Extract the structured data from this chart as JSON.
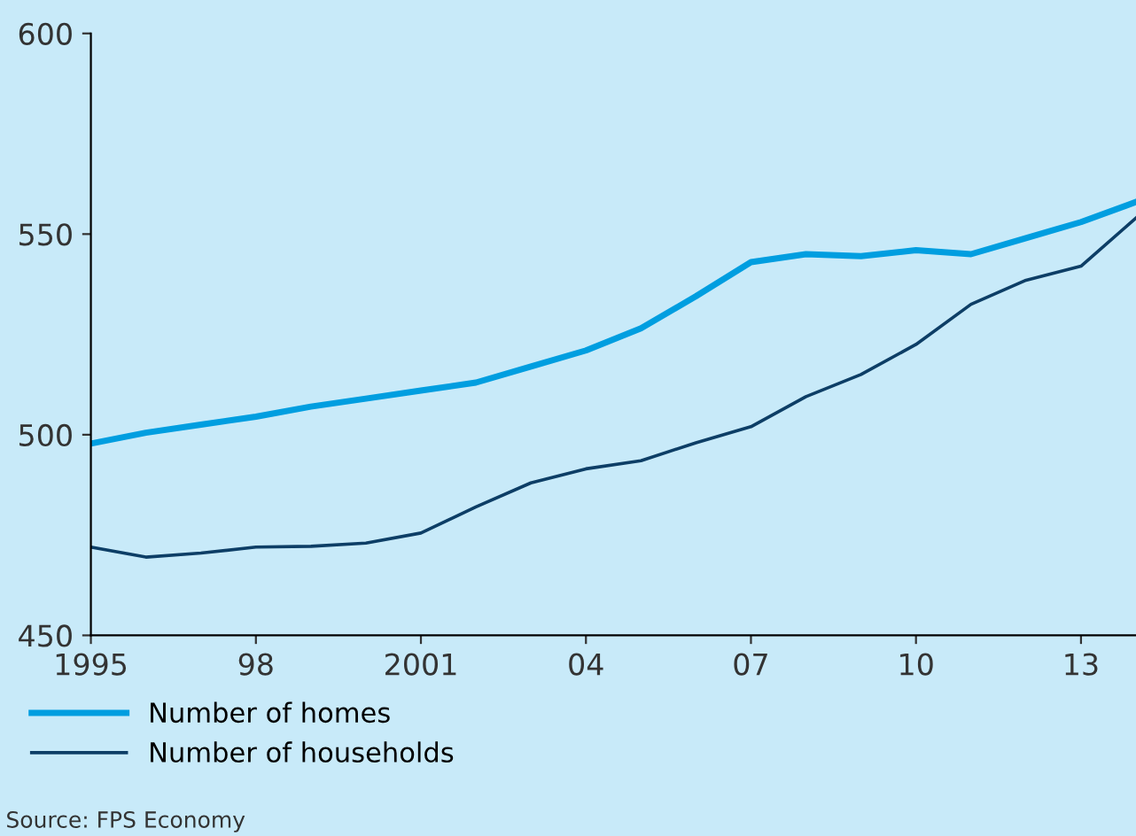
{
  "chart_data": {
    "type": "line",
    "x": [
      1995,
      1996,
      1997,
      1998,
      1999,
      2000,
      2001,
      2002,
      2003,
      2004,
      2005,
      2006,
      2007,
      2008,
      2009,
      2010,
      2011,
      2012,
      2013,
      2014
    ],
    "series": [
      {
        "name": "Number of homes",
        "color": "#009ee0",
        "values": [
          497.8,
          500.5,
          502.5,
          504.5,
          507,
          509,
          511,
          513,
          517,
          521,
          526.5,
          534.5,
          543,
          545,
          544.5,
          546,
          545,
          549,
          553,
          558
        ]
      },
      {
        "name": "Number of households",
        "color": "#0d3e66",
        "values": [
          472,
          469.5,
          470.5,
          472,
          472.2,
          473,
          475.5,
          482,
          488,
          491.5,
          493.5,
          498,
          502,
          509.5,
          515,
          522.5,
          532.5,
          538.5,
          542,
          554
        ]
      }
    ],
    "xlim": [
      1995,
      2014
    ],
    "xticks": [
      1995,
      {
        "value": 1998,
        "label": "98"
      },
      2001,
      {
        "value": 2004,
        "label": "04"
      },
      {
        "value": 2007,
        "label": "07"
      },
      {
        "value": 2010,
        "label": "10"
      },
      {
        "value": 2013,
        "label": "13"
      }
    ],
    "ylim": [
      450,
      600
    ],
    "yticks": [
      450,
      500,
      550,
      600
    ],
    "grid": false,
    "legend": "bottom",
    "marker": "none",
    "line_style": "solid",
    "annotations": [
      "Source: FPS Economy"
    ]
  }
}
